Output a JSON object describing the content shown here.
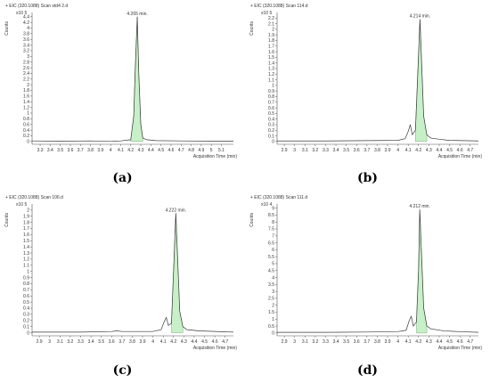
{
  "colors": {
    "trace": "#3a3a3a",
    "fill": "#c8f0c8",
    "fill_stroke": "#5a9a5a",
    "axis": "#555555"
  },
  "chart_data": [
    {
      "type": "line",
      "panel_label": "(a)",
      "title": "+ EIC (320.1088) Scan std4 2.d",
      "ylabel": "Counts",
      "xlabel": "Acquisition Time (min)",
      "y_multiplier": "x10 5",
      "x_ticks": [
        3.3,
        3.4,
        3.5,
        3.6,
        3.7,
        3.8,
        3.9,
        4,
        4.1,
        4.2,
        4.3,
        4.4,
        4.5,
        4.6,
        4.7,
        4.8,
        4.9,
        5,
        5.1
      ],
      "xlim": [
        3.22,
        5.22
      ],
      "y_ticks": [
        0,
        0.2,
        0.4,
        0.6,
        0.8,
        1,
        1.2,
        1.4,
        1.6,
        1.8,
        2,
        2.2,
        2.4,
        2.6,
        2.8,
        3,
        3.2,
        3.4,
        3.6,
        3.8,
        4,
        4.2,
        4.4
      ],
      "ylim": [
        -0.1,
        4.55
      ],
      "peak_label": "4.265 min.",
      "peak_label_x": 4.265,
      "trace": [
        [
          3.22,
          0.02
        ],
        [
          3.5,
          0.01
        ],
        [
          3.8,
          0.02
        ],
        [
          4.0,
          0.0
        ],
        [
          4.1,
          0.02
        ],
        [
          4.2,
          0.06
        ],
        [
          4.23,
          0.9
        ],
        [
          4.245,
          2.6
        ],
        [
          4.265,
          4.4
        ],
        [
          4.28,
          2.4
        ],
        [
          4.3,
          0.6
        ],
        [
          4.32,
          0.12
        ],
        [
          4.36,
          0.06
        ],
        [
          4.45,
          0.03
        ],
        [
          4.7,
          0.02
        ],
        [
          5.0,
          0.01
        ],
        [
          5.22,
          0.01
        ]
      ],
      "fill_range": [
        4.2,
        4.34
      ]
    },
    {
      "type": "line",
      "panel_label": "(b)",
      "title": "+ EIC (320.1088) Scan 114.d",
      "ylabel": "Counts",
      "xlabel": "Acquisition Time (min)",
      "y_multiplier": "x10 5",
      "x_ticks": [
        2.9,
        3,
        3.1,
        3.2,
        3.3,
        3.4,
        3.5,
        3.6,
        3.7,
        3.8,
        3.9,
        4,
        4.1,
        4.2,
        4.3,
        4.4,
        4.5,
        4.6,
        4.7
      ],
      "xlim": [
        2.83,
        4.78
      ],
      "y_ticks": [
        0,
        0.1,
        0.2,
        0.3,
        0.4,
        0.5,
        0.6,
        0.7,
        0.8,
        0.9,
        1,
        1.1,
        1.2,
        1.3,
        1.4,
        1.5,
        1.6,
        1.7,
        1.8,
        1.9,
        2,
        2.1,
        2.2
      ],
      "ylim": [
        -0.05,
        2.3
      ],
      "peak_label": "4.214 min.",
      "peak_label_x": 4.214,
      "trace": [
        [
          2.83,
          0.01
        ],
        [
          3.3,
          0.01
        ],
        [
          3.7,
          0.015
        ],
        [
          4.0,
          0.02
        ],
        [
          4.07,
          0.05
        ],
        [
          4.1,
          0.18
        ],
        [
          4.12,
          0.3
        ],
        [
          4.14,
          0.12
        ],
        [
          4.17,
          0.2
        ],
        [
          4.19,
          1.1
        ],
        [
          4.214,
          2.18
        ],
        [
          4.23,
          1.4
        ],
        [
          4.25,
          0.45
        ],
        [
          4.28,
          0.12
        ],
        [
          4.32,
          0.06
        ],
        [
          4.4,
          0.04
        ],
        [
          4.5,
          0.02
        ],
        [
          4.78,
          0.01
        ]
      ],
      "fill_range": [
        4.16,
        4.31
      ]
    },
    {
      "type": "line",
      "panel_label": "(c)",
      "title": "+ EIC (320.1088) Scan 106.d",
      "ylabel": "Counts",
      "xlabel": "Acquisition Time (min)",
      "y_multiplier": "x10 5",
      "x_ticks": [
        2.9,
        3,
        3.1,
        3.2,
        3.3,
        3.4,
        3.5,
        3.6,
        3.7,
        3.8,
        3.9,
        4,
        4.1,
        4.2,
        4.3,
        4.4,
        4.5,
        4.6,
        4.7
      ],
      "xlim": [
        2.83,
        4.78
      ],
      "y_ticks": [
        0,
        0.1,
        0.2,
        0.3,
        0.4,
        0.5,
        0.6,
        0.7,
        0.8,
        0.9,
        1,
        1.1,
        1.2,
        1.3,
        1.4,
        1.5,
        1.6,
        1.7,
        1.8,
        1.9,
        2
      ],
      "ylim": [
        -0.05,
        2.1
      ],
      "peak_label": "4.222 min.",
      "peak_label_x": 4.222,
      "trace": [
        [
          2.83,
          0.01
        ],
        [
          3.3,
          0.01
        ],
        [
          3.6,
          0.02
        ],
        [
          3.65,
          0.03
        ],
        [
          3.7,
          0.02
        ],
        [
          4.0,
          0.02
        ],
        [
          4.08,
          0.05
        ],
        [
          4.11,
          0.18
        ],
        [
          4.13,
          0.25
        ],
        [
          4.15,
          0.12
        ],
        [
          4.18,
          0.15
        ],
        [
          4.2,
          1.0
        ],
        [
          4.222,
          1.95
        ],
        [
          4.24,
          1.2
        ],
        [
          4.26,
          0.35
        ],
        [
          4.29,
          0.1
        ],
        [
          4.33,
          0.05
        ],
        [
          4.45,
          0.03
        ],
        [
          4.78,
          0.01
        ]
      ],
      "fill_range": [
        4.17,
        4.32
      ]
    },
    {
      "type": "line",
      "panel_label": "(d)",
      "title": "+ EIC (320.1088) Scan 111.d",
      "ylabel": "Counts",
      "xlabel": "Acquisition Time (min)",
      "y_multiplier": "x10 4",
      "x_ticks": [
        2.9,
        3,
        3.1,
        3.2,
        3.3,
        3.4,
        3.5,
        3.6,
        3.7,
        3.8,
        3.9,
        4,
        4.1,
        4.2,
        4.3,
        4.4,
        4.5,
        4.6,
        4.7
      ],
      "xlim": [
        2.83,
        4.78
      ],
      "y_ticks": [
        0,
        0.5,
        1,
        1.5,
        2,
        2.5,
        3,
        3.5,
        4,
        4.5,
        5,
        5.5,
        6,
        6.5,
        7,
        7.5,
        8,
        8.5,
        9
      ],
      "ylim": [
        -0.2,
        9.3
      ],
      "peak_label": "4.212 min.",
      "peak_label_x": 4.212,
      "trace": [
        [
          2.83,
          0.05
        ],
        [
          3.3,
          0.05
        ],
        [
          3.7,
          0.07
        ],
        [
          4.0,
          0.1
        ],
        [
          4.08,
          0.2
        ],
        [
          4.11,
          0.9
        ],
        [
          4.13,
          1.2
        ],
        [
          4.15,
          0.5
        ],
        [
          4.18,
          0.8
        ],
        [
          4.2,
          4.5
        ],
        [
          4.212,
          8.9
        ],
        [
          4.23,
          5.5
        ],
        [
          4.25,
          1.8
        ],
        [
          4.28,
          0.5
        ],
        [
          4.32,
          0.3
        ],
        [
          4.45,
          0.15
        ],
        [
          4.6,
          0.1
        ],
        [
          4.78,
          0.05
        ]
      ],
      "fill_range": [
        4.16,
        4.31
      ]
    }
  ]
}
